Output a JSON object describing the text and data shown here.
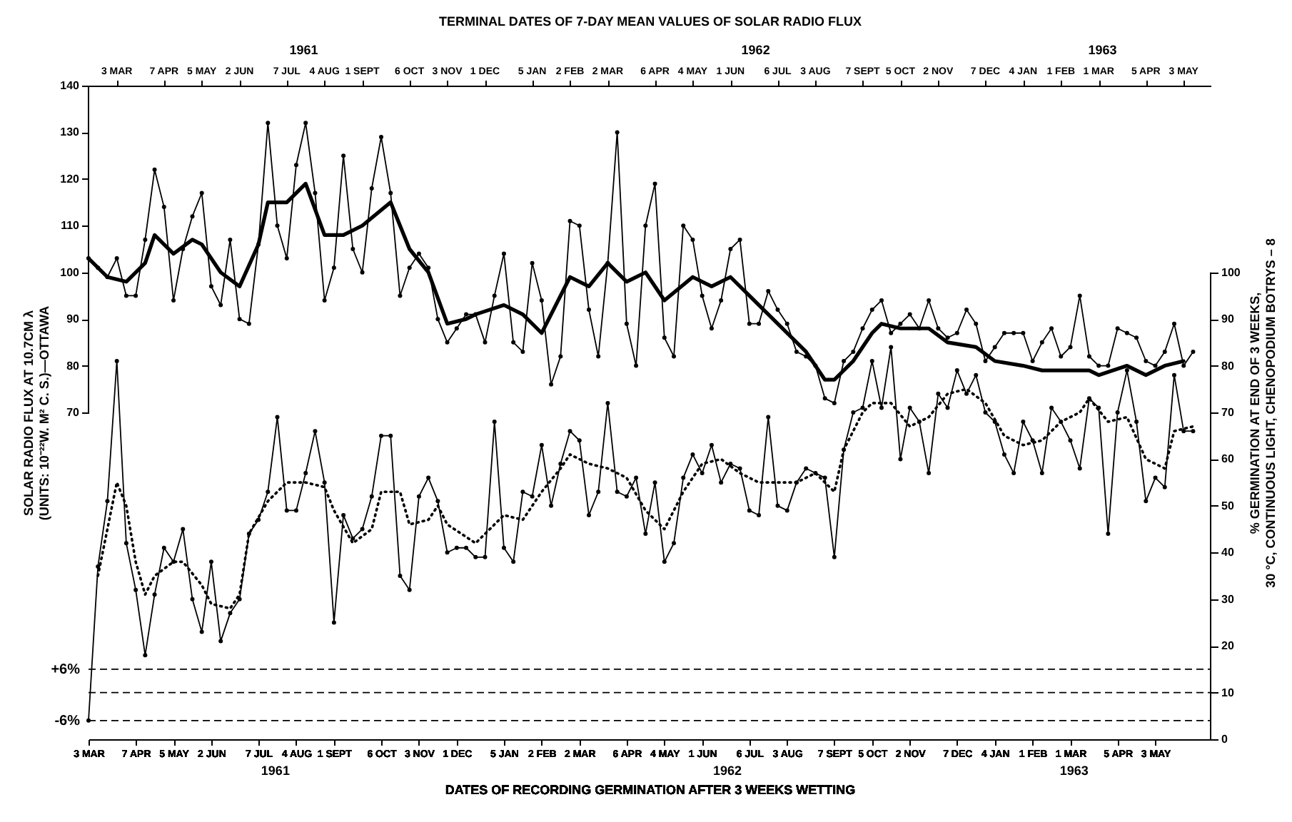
{
  "chart_data": {
    "type": "line",
    "x2label": "TERMINAL DATES OF 7-DAY MEAN VALUES OF SOLAR RADIO FLUX",
    "xlabel": "DATES OF RECORDING GERMINATION AFTER 3 WEEKS WETTING",
    "ylabel": "SOLAR RADIO FLUX AT 10.7CM λ\n(UNITS: 10⁻²²W. M² C. S.)—OTTAWA",
    "y2label": "% GERMINATION AT END OF 3 WEEKS,\n30 °C, CONTINUOUS LIGHT, CHENOPODIUM BOTRYS – 8",
    "xlim": [
      "1961-03-03",
      "1963-06-13"
    ],
    "x2lim": [
      "1961-02-10",
      "1963-05-23"
    ],
    "xticks": [
      {
        "value": "1961-03-03",
        "label": "3 MAR"
      },
      {
        "value": "1961-04-07",
        "label": "7 APR"
      },
      {
        "value": "1961-05-05",
        "label": "5 MAY"
      },
      {
        "value": "1961-06-02",
        "label": "2 JUN"
      },
      {
        "value": "1961-07-07",
        "label": "7 JUL"
      },
      {
        "value": "1961-08-04",
        "label": "4 AUG"
      },
      {
        "value": "1961-09-01",
        "label": "1 SEPT"
      },
      {
        "value": "1961-10-06",
        "label": "6 OCT"
      },
      {
        "value": "1961-11-03",
        "label": "3 NOV"
      },
      {
        "value": "1961-12-01",
        "label": "1 DEC"
      },
      {
        "value": "1962-01-05",
        "label": "5 JAN"
      },
      {
        "value": "1962-02-02",
        "label": "2 FEB"
      },
      {
        "value": "1962-03-02",
        "label": "2 MAR"
      },
      {
        "value": "1962-04-06",
        "label": "6 APR"
      },
      {
        "value": "1962-05-04",
        "label": "4 MAY"
      },
      {
        "value": "1962-06-01",
        "label": "1 JUN"
      },
      {
        "value": "1962-07-06",
        "label": "6 JUL"
      },
      {
        "value": "1962-08-03",
        "label": "3 AUG"
      },
      {
        "value": "1962-09-07",
        "label": "7 SEPT"
      },
      {
        "value": "1962-10-05",
        "label": "5 OCT"
      },
      {
        "value": "1962-11-02",
        "label": "2 NOV"
      },
      {
        "value": "1962-12-07",
        "label": "7 DEC"
      },
      {
        "value": "1963-01-04",
        "label": "4 JAN"
      },
      {
        "value": "1963-02-01",
        "label": "1 FEB"
      },
      {
        "value": "1963-03-01",
        "label": "1 MAR"
      },
      {
        "value": "1963-04-05",
        "label": "5 APR"
      },
      {
        "value": "1963-05-03",
        "label": "3 MAY"
      }
    ],
    "x2ticks": [
      {
        "value": "1961-03-03",
        "label": "3 MAR"
      },
      {
        "value": "1961-04-07",
        "label": "7 APR"
      },
      {
        "value": "1961-05-05",
        "label": "5 MAY"
      },
      {
        "value": "1961-06-02",
        "label": "2 JUN"
      },
      {
        "value": "1961-07-07",
        "label": "7 JUL"
      },
      {
        "value": "1961-08-04",
        "label": "4 AUG"
      },
      {
        "value": "1961-09-01",
        "label": "1 SEPT"
      },
      {
        "value": "1961-10-06",
        "label": "6 OCT"
      },
      {
        "value": "1961-11-03",
        "label": "3 NOV"
      },
      {
        "value": "1961-12-01",
        "label": "1 DEC"
      },
      {
        "value": "1962-01-05",
        "label": "5 JAN"
      },
      {
        "value": "1962-02-02",
        "label": "2 FEB"
      },
      {
        "value": "1962-03-02",
        "label": "2 MAR"
      },
      {
        "value": "1962-04-06",
        "label": "6 APR"
      },
      {
        "value": "1962-05-04",
        "label": "4 MAY"
      },
      {
        "value": "1962-06-01",
        "label": "1 JUN"
      },
      {
        "value": "1962-07-06",
        "label": "6 JUL"
      },
      {
        "value": "1962-08-03",
        "label": "3 AUG"
      },
      {
        "value": "1962-09-07",
        "label": "7 SEPT"
      },
      {
        "value": "1962-10-05",
        "label": "5 OCT"
      },
      {
        "value": "1962-11-02",
        "label": "2 NOV"
      },
      {
        "value": "1962-12-07",
        "label": "7 DEC"
      },
      {
        "value": "1963-01-04",
        "label": "4 JAN"
      },
      {
        "value": "1963-02-01",
        "label": "1 FEB"
      },
      {
        "value": "1963-03-01",
        "label": "1 MAR"
      },
      {
        "value": "1963-04-05",
        "label": "5 APR"
      },
      {
        "value": "1963-05-03",
        "label": "3 MAY"
      }
    ],
    "ylim": [
      0,
      140
    ],
    "yticks": [
      70,
      80,
      90,
      100,
      110,
      120,
      130,
      140
    ],
    "y2lim": [
      0,
      140
    ],
    "y2ticks": [
      0,
      10,
      20,
      30,
      40,
      50,
      60,
      70,
      80,
      90,
      100
    ],
    "x": [
      "1961-03-03",
      "1961-03-10",
      "1961-03-17",
      "1961-03-24",
      "1961-03-31",
      "1961-04-07",
      "1961-04-14",
      "1961-04-21",
      "1961-04-28",
      "1961-05-05",
      "1961-05-12",
      "1961-05-19",
      "1961-05-26",
      "1961-06-02",
      "1961-06-09",
      "1961-06-16",
      "1961-06-23",
      "1961-06-30",
      "1961-07-07",
      "1961-07-14",
      "1961-07-21",
      "1961-07-28",
      "1961-08-04",
      "1961-08-11",
      "1961-08-18",
      "1961-08-25",
      "1961-09-01",
      "1961-09-08",
      "1961-09-15",
      "1961-09-22",
      "1961-09-29",
      "1961-10-06",
      "1961-10-13",
      "1961-10-20",
      "1961-10-27",
      "1961-11-03",
      "1961-11-10",
      "1961-11-17",
      "1961-11-24",
      "1961-12-01",
      "1961-12-08",
      "1961-12-15",
      "1961-12-22",
      "1961-12-29",
      "1962-01-05",
      "1962-01-12",
      "1962-01-19",
      "1962-01-26",
      "1962-02-02",
      "1962-02-09",
      "1962-02-16",
      "1962-02-23",
      "1962-03-02",
      "1962-03-09",
      "1962-03-16",
      "1962-03-23",
      "1962-03-30",
      "1962-04-06",
      "1962-04-13",
      "1962-04-20",
      "1962-04-27",
      "1962-05-04",
      "1962-05-11",
      "1962-05-18",
      "1962-05-25",
      "1962-06-01",
      "1962-06-08",
      "1962-06-15",
      "1962-06-22",
      "1962-06-29",
      "1962-07-06",
      "1962-07-13",
      "1962-07-20",
      "1962-07-27",
      "1962-08-03",
      "1962-08-10",
      "1962-08-17",
      "1962-08-24",
      "1962-08-31",
      "1962-09-07",
      "1962-09-14",
      "1962-09-21",
      "1962-09-28",
      "1962-10-05",
      "1962-10-12",
      "1962-10-19",
      "1962-10-26",
      "1962-11-02",
      "1962-11-09",
      "1962-11-16",
      "1962-11-23",
      "1962-11-30",
      "1962-12-07",
      "1962-12-14",
      "1962-12-21",
      "1962-12-28",
      "1963-01-04",
      "1963-01-11",
      "1963-01-18",
      "1963-01-25",
      "1963-02-01",
      "1963-02-08",
      "1963-02-15",
      "1963-02-22",
      "1963-03-01",
      "1963-03-08",
      "1963-03-15",
      "1963-03-22",
      "1963-03-29",
      "1963-04-05",
      "1963-04-12",
      "1963-04-19",
      "1963-04-26",
      "1963-05-03",
      "1963-05-10",
      "1963-05-17",
      "1963-05-24",
      "1963-05-31"
    ],
    "series": [
      {
        "color": "#000000",
        "marker": "circle",
        "line_style": "solid",
        "values": [
          103,
          101,
          99,
          103,
          95,
          95,
          107,
          122,
          114,
          94,
          105,
          112,
          117,
          97,
          93,
          107,
          90,
          89,
          106,
          132,
          110,
          103,
          123,
          132,
          117,
          94,
          101,
          125,
          105,
          100,
          118,
          129,
          117,
          95,
          101,
          104,
          101,
          90,
          85,
          88,
          91,
          91,
          85,
          95,
          104,
          85,
          83,
          102,
          94,
          76,
          82,
          111,
          110,
          92,
          82,
          102,
          130,
          89,
          80,
          110,
          119,
          86,
          82,
          110,
          107,
          95,
          88,
          94,
          105,
          107,
          89,
          89,
          96,
          92,
          89,
          83,
          82,
          80,
          73,
          72,
          81,
          83,
          88,
          92,
          94,
          87,
          89,
          91,
          88,
          94,
          88,
          86,
          87,
          92,
          89,
          81,
          84,
          87,
          87,
          87,
          81,
          85,
          88,
          82,
          84,
          95,
          82,
          80,
          80,
          88,
          87,
          86,
          81,
          80,
          83,
          89,
          80,
          83
        ]
      },
      {
        "color": "#000000",
        "marker": "none",
        "line_style": "solid",
        "x": [
          "1961-03-03",
          "1961-03-17",
          "1961-03-31",
          "1961-04-14",
          "1961-04-21",
          "1961-05-05",
          "1961-05-19",
          "1961-05-26",
          "1961-06-09",
          "1961-06-23",
          "1961-07-07",
          "1961-07-14",
          "1961-07-28",
          "1961-08-11",
          "1961-08-25",
          "1961-09-08",
          "1961-09-22",
          "1961-10-13",
          "1961-10-27",
          "1961-11-10",
          "1961-11-24",
          "1961-12-08",
          "1961-12-15",
          "1962-01-05",
          "1962-01-19",
          "1962-02-02",
          "1962-02-23",
          "1962-03-09",
          "1962-03-23",
          "1962-04-06",
          "1962-04-20",
          "1962-05-04",
          "1962-05-25",
          "1962-06-08",
          "1962-06-22",
          "1962-07-06",
          "1962-07-27",
          "1962-08-17",
          "1962-08-31",
          "1962-09-07",
          "1962-09-21",
          "1962-10-05",
          "1962-10-12",
          "1962-10-26",
          "1962-11-16",
          "1962-11-30",
          "1962-12-21",
          "1963-01-04",
          "1963-01-25",
          "1963-02-08",
          "1963-03-01",
          "1963-03-15",
          "1963-03-22",
          "1963-04-12",
          "1963-04-26",
          "1963-05-10",
          "1963-05-24"
        ],
        "values": [
          103,
          99,
          98,
          102,
          108,
          104,
          107,
          106,
          100,
          97,
          106,
          115,
          115,
          119,
          108,
          108,
          110,
          115,
          105,
          100,
          89,
          90,
          91,
          93,
          91,
          87,
          99,
          97,
          102,
          98,
          100,
          94,
          99,
          97,
          99,
          95,
          89,
          83,
          77,
          77,
          81,
          87,
          89,
          88,
          88,
          85,
          84,
          81,
          80,
          79,
          79,
          79,
          78,
          80,
          78,
          80,
          81
        ]
      },
      {
        "axis": "y2",
        "color": "#000000",
        "marker": "circle",
        "line_style": "solid",
        "values": [
          4,
          37,
          51,
          81,
          42,
          32,
          18,
          31,
          41,
          38,
          45,
          30,
          23,
          38,
          21,
          27,
          30,
          44,
          47,
          53,
          69,
          49,
          49,
          57,
          66,
          55,
          25,
          48,
          43,
          45,
          52,
          65,
          65,
          35,
          32,
          52,
          56,
          51,
          40,
          41,
          41,
          39,
          39,
          68,
          41,
          38,
          53,
          52,
          63,
          50,
          59,
          66,
          64,
          48,
          53,
          72,
          53,
          52,
          56,
          44,
          55,
          38,
          42,
          56,
          61,
          57,
          63,
          55,
          59,
          58,
          49,
          48,
          69,
          50,
          49,
          55,
          58,
          57,
          56,
          39,
          62,
          70,
          71,
          81,
          71,
          84,
          60,
          71,
          68,
          57,
          74,
          71,
          79,
          74,
          78,
          70,
          68,
          61,
          57,
          68,
          64,
          57,
          71,
          68,
          64,
          58,
          73,
          71,
          44,
          70,
          79,
          68,
          51,
          56,
          54,
          78,
          66,
          66
        ]
      },
      {
        "axis": "y2",
        "color": "#000000",
        "marker": "none",
        "line_style": "dotted",
        "x": [
          "1961-03-10",
          "1961-03-24",
          "1961-03-31",
          "1961-04-07",
          "1961-04-14",
          "1961-04-21",
          "1961-05-05",
          "1961-05-12",
          "1961-05-26",
          "1961-06-02",
          "1961-06-16",
          "1961-06-23",
          "1961-06-30",
          "1961-07-14",
          "1961-07-28",
          "1961-08-11",
          "1961-08-25",
          "1961-09-01",
          "1961-09-15",
          "1961-09-29",
          "1961-10-06",
          "1961-10-20",
          "1961-10-27",
          "1961-11-10",
          "1961-11-17",
          "1961-11-24",
          "1961-12-15",
          "1962-01-05",
          "1962-01-19",
          "1962-02-02",
          "1962-02-16",
          "1962-02-23",
          "1962-03-09",
          "1962-03-23",
          "1962-04-06",
          "1962-04-20",
          "1962-05-04",
          "1962-05-18",
          "1962-06-01",
          "1962-06-15",
          "1962-06-29",
          "1962-07-13",
          "1962-07-27",
          "1962-08-10",
          "1962-08-24",
          "1962-09-07",
          "1962-09-14",
          "1962-09-28",
          "1962-10-05",
          "1962-10-19",
          "1962-11-02",
          "1962-11-16",
          "1962-11-30",
          "1962-12-14",
          "1962-12-28",
          "1963-01-11",
          "1963-01-25",
          "1963-02-08",
          "1963-02-22",
          "1963-03-08",
          "1963-03-15",
          "1963-03-29",
          "1963-04-12",
          "1963-04-26",
          "1963-05-10",
          "1963-05-17",
          "1963-05-31"
        ],
        "values": [
          35,
          55,
          50,
          38,
          31,
          35,
          38,
          38,
          33,
          29,
          28,
          31,
          44,
          51,
          55,
          55,
          54,
          49,
          42,
          45,
          53,
          53,
          46,
          47,
          50,
          46,
          42,
          48,
          47,
          53,
          58,
          61,
          59,
          58,
          56,
          49,
          45,
          53,
          59,
          60,
          57,
          55,
          55,
          55,
          57,
          53,
          62,
          70,
          72,
          72,
          67,
          69,
          74,
          75,
          72,
          65,
          63,
          64,
          68,
          70,
          73,
          68,
          69,
          60,
          58,
          66,
          67
        ]
      }
    ],
    "ref_lines": [
      {
        "axis": "y2",
        "value": 15,
        "line_style": "dashed"
      },
      {
        "axis": "y2",
        "value": 10,
        "line_style": "dashed"
      },
      {
        "axis": "y2",
        "value": 4,
        "line_style": "dashed"
      }
    ],
    "annotations": [
      "+6%",
      "-6%",
      "1961",
      "1962",
      "1963",
      "1961",
      "1962",
      "1963"
    ]
  }
}
